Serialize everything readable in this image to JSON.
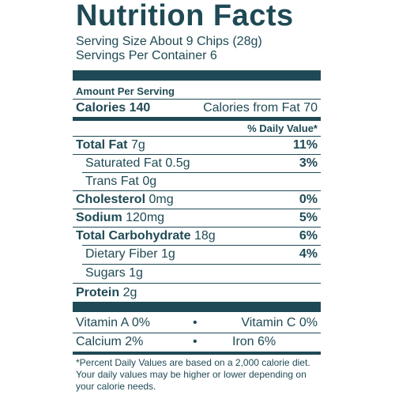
{
  "title": "Nutrition Facts",
  "serving_size": "Serving Size About 9 Chips (28g)",
  "servings_per_container": "Servings Per Container 6",
  "amount_per_serving": "Amount Per Serving",
  "calories_label": "Calories",
  "calories_value": "140",
  "calories_from_fat": "Calories from Fat 70",
  "daily_value_header": "% Daily Value*",
  "nutrients": [
    {
      "label": "Total Fat",
      "amount": "7g",
      "dv": "11%"
    },
    {
      "label": "Saturated Fat",
      "amount": "0.5g",
      "dv": "3%"
    },
    {
      "label": "Trans Fat",
      "amount": "0g",
      "dv": ""
    },
    {
      "label": "Cholesterol",
      "amount": "0mg",
      "dv": "0%"
    },
    {
      "label": "Sodium",
      "amount": "120mg",
      "dv": "5%"
    },
    {
      "label": "Total Carbohydrate",
      "amount": "18g",
      "dv": "6%"
    },
    {
      "label": "Dietary Fiber",
      "amount": "1g",
      "dv": "4%"
    },
    {
      "label": "Sugars",
      "amount": "1g",
      "dv": ""
    },
    {
      "label": "Protein",
      "amount": "2g",
      "dv": ""
    }
  ],
  "vitamins": {
    "vitamin_a": "Vitamin A 0%",
    "vitamin_c": "Vitamin C 0%",
    "calcium": "Calcium 2%",
    "iron": "Iron 6%",
    "separator": "•"
  },
  "footnote": "*Percent Daily Values are based on a 2,000 calorie diet. Your daily values may be higher or lower depending on your calorie needs.",
  "colors": {
    "ink": "#1f4a55"
  }
}
